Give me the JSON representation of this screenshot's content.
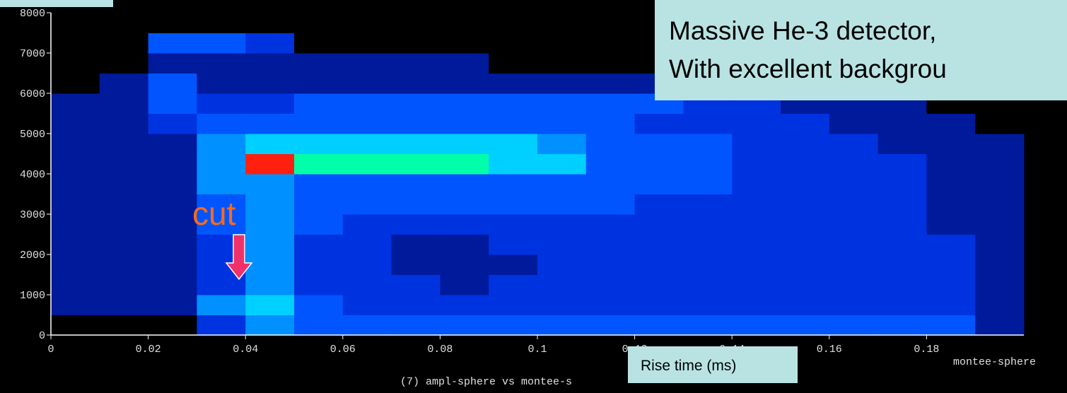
{
  "chart_data": {
    "type": "heatmap",
    "xlim": [
      0,
      0.2
    ],
    "ylim": [
      0,
      8000
    ],
    "xticks": [
      0,
      0.02,
      0.04,
      0.06,
      0.08,
      0.1,
      0.12,
      0.14,
      0.16,
      0.18
    ],
    "yticks": [
      0,
      1000,
      2000,
      3000,
      4000,
      5000,
      6000,
      7000,
      8000
    ],
    "xbins": [
      0,
      0.01,
      0.02,
      0.03,
      0.04,
      0.05,
      0.06,
      0.07,
      0.08,
      0.09,
      0.1,
      0.11,
      0.12,
      0.13,
      0.14,
      0.15,
      0.16,
      0.17,
      0.18,
      0.19,
      0.2
    ],
    "ybins": [
      0,
      500,
      1000,
      1500,
      2000,
      2500,
      3000,
      3500,
      4000,
      4500,
      5000,
      5500,
      6000,
      6500,
      7000,
      7500,
      8000
    ],
    "colorscale": [
      "#000000",
      "#001a9c",
      "#0033e0",
      "#0055ff",
      "#0090ff",
      "#00d0ff",
      "#00ffa8",
      "#70ff00",
      "#ffff00",
      "#ff2010"
    ],
    "values": [
      [
        0,
        0,
        0,
        2,
        4,
        3,
        3,
        3,
        3,
        3,
        3,
        3,
        3,
        3,
        3,
        3,
        3,
        3,
        3,
        1
      ],
      [
        1,
        1,
        1,
        4,
        5,
        3,
        2,
        2,
        2,
        2,
        2,
        2,
        2,
        2,
        2,
        2,
        2,
        2,
        2,
        1
      ],
      [
        1,
        1,
        1,
        2,
        4,
        2,
        2,
        2,
        1,
        2,
        2,
        2,
        2,
        2,
        2,
        2,
        2,
        2,
        2,
        1
      ],
      [
        1,
        1,
        1,
        2,
        4,
        2,
        2,
        1,
        1,
        1,
        2,
        2,
        2,
        2,
        2,
        2,
        2,
        2,
        2,
        1
      ],
      [
        1,
        1,
        1,
        2,
        4,
        2,
        2,
        1,
        1,
        2,
        2,
        2,
        2,
        2,
        2,
        2,
        2,
        2,
        2,
        1
      ],
      [
        1,
        1,
        1,
        3,
        4,
        3,
        2,
        2,
        2,
        2,
        2,
        2,
        2,
        2,
        2,
        2,
        2,
        2,
        1,
        1
      ],
      [
        1,
        1,
        1,
        3,
        4,
        3,
        3,
        3,
        3,
        3,
        3,
        3,
        2,
        2,
        2,
        2,
        2,
        2,
        1,
        1
      ],
      [
        1,
        1,
        1,
        4,
        4,
        3,
        3,
        3,
        3,
        3,
        3,
        3,
        3,
        3,
        2,
        2,
        2,
        2,
        1,
        1
      ],
      [
        1,
        1,
        1,
        4,
        9,
        6,
        6,
        6,
        6,
        5,
        5,
        3,
        3,
        3,
        2,
        2,
        2,
        2,
        1,
        1
      ],
      [
        1,
        1,
        1,
        4,
        5,
        5,
        5,
        5,
        5,
        5,
        4,
        3,
        3,
        3,
        2,
        2,
        2,
        1,
        1,
        1
      ],
      [
        1,
        1,
        2,
        3,
        3,
        3,
        3,
        3,
        3,
        3,
        3,
        3,
        2,
        2,
        2,
        2,
        1,
        1,
        1,
        0
      ],
      [
        1,
        1,
        3,
        2,
        2,
        3,
        3,
        3,
        3,
        3,
        3,
        3,
        3,
        2,
        2,
        1,
        1,
        1,
        0,
        0
      ],
      [
        0,
        1,
        3,
        1,
        1,
        1,
        1,
        1,
        1,
        1,
        1,
        1,
        1,
        1,
        0,
        0,
        0,
        0,
        0,
        0
      ],
      [
        0,
        0,
        1,
        1,
        1,
        1,
        1,
        1,
        1,
        0,
        0,
        0,
        0,
        0,
        0,
        0,
        0,
        0,
        0,
        0
      ],
      [
        0,
        0,
        3,
        3,
        2,
        0,
        0,
        0,
        0,
        0,
        0,
        0,
        0,
        0,
        0,
        0,
        0,
        0,
        0,
        0
      ],
      [
        0,
        0,
        0,
        0,
        0,
        0,
        0,
        0,
        0,
        0,
        0,
        0,
        0,
        0,
        0,
        0,
        0,
        0,
        0,
        0
      ]
    ],
    "axis_name": "montee-sphere",
    "caption": "(7) ampl-sphere vs montee-s",
    "xlabel": "Rise time (ms)",
    "annotations": [
      "Massive He-3 detector,",
      "With excellent backgrou"
    ],
    "cut_label": "cut"
  }
}
